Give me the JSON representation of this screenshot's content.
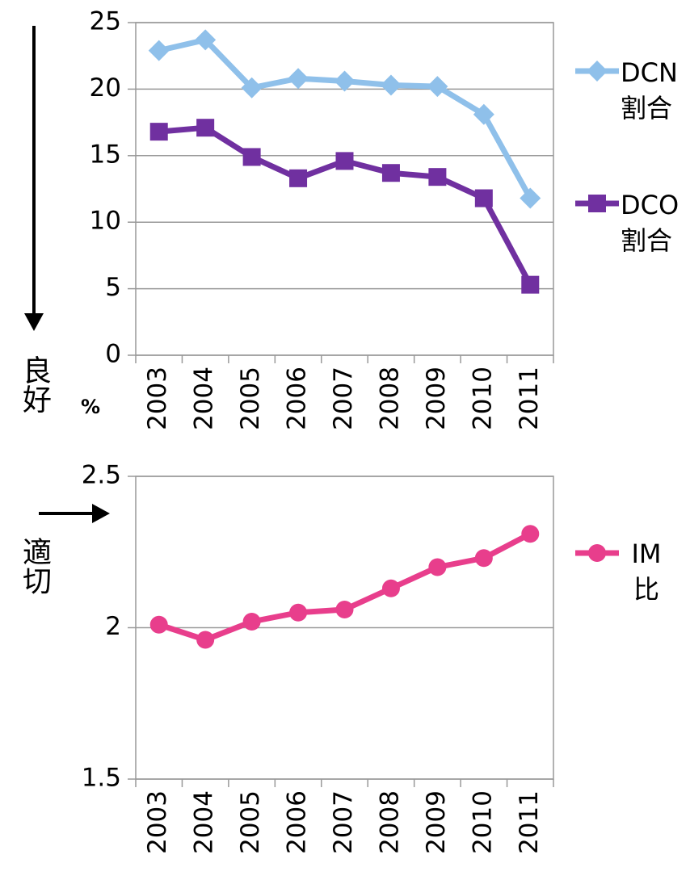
{
  "chart_data": [
    {
      "type": "line",
      "categories": [
        "2003",
        "2004",
        "2005",
        "2006",
        "2007",
        "2008",
        "2009",
        "2010",
        "2011"
      ],
      "series": [
        {
          "name": "DCN割合",
          "color": "#8fc0ea",
          "marker": "diamond",
          "values": [
            22.9,
            23.7,
            20.1,
            20.8,
            20.6,
            20.3,
            20.2,
            18.1,
            11.8
          ]
        },
        {
          "name": "DCO割合",
          "color": "#7030a0",
          "marker": "square",
          "values": [
            16.8,
            17.1,
            14.9,
            13.3,
            14.6,
            13.7,
            13.4,
            11.8,
            5.3
          ]
        }
      ],
      "ylim": [
        0,
        25
      ],
      "yticks": [
        0,
        5,
        10,
        15,
        20,
        25
      ],
      "grid": true,
      "annotations": [
        "良好",
        "%"
      ]
    },
    {
      "type": "line",
      "categories": [
        "2003",
        "2004",
        "2005",
        "2006",
        "2007",
        "2008",
        "2009",
        "2010",
        "2011"
      ],
      "series": [
        {
          "name": "IM比",
          "color": "#e83e8c",
          "marker": "circle",
          "values": [
            2.01,
            1.96,
            2.02,
            2.05,
            2.06,
            2.13,
            2.2,
            2.23,
            2.31
          ]
        }
      ],
      "ylim": [
        1.5,
        2.5
      ],
      "yticks": [
        1.5,
        2,
        2.5
      ],
      "grid": true,
      "annotations": [
        "適切"
      ]
    }
  ]
}
